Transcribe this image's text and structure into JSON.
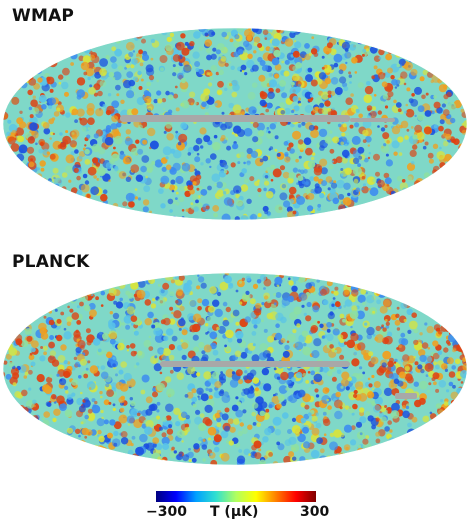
{
  "maps": [
    {
      "title": "WMAP"
    },
    {
      "title": "PLANCK"
    }
  ],
  "colorbar": {
    "min_label": "−300",
    "max_label": "300",
    "unit_label": "T (μK)",
    "colors": [
      "#00007f",
      "#0000ff",
      "#00a0ff",
      "#30e0d0",
      "#b0ff60",
      "#ffff00",
      "#ff8000",
      "#ff0000",
      "#7f0000"
    ]
  },
  "mask_color": "#a8a8a8",
  "map_colors": [
    "#1a4fe0",
    "#3c8cf0",
    "#59c3e8",
    "#8ee0a0",
    "#d9e43a",
    "#f0a020",
    "#e04010"
  ]
}
